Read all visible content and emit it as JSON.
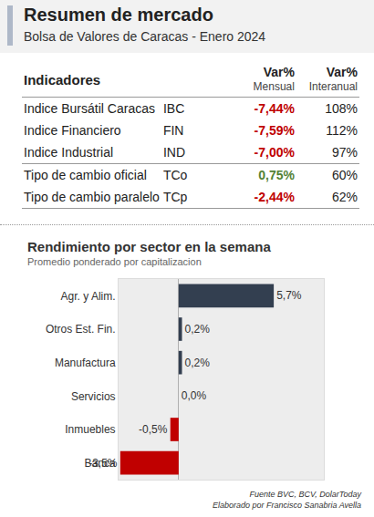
{
  "header": {
    "title": "Resumen de mercado",
    "subtitle": "Bolsa de Valores de Caracas - Enero 2024"
  },
  "table": {
    "headers": [
      "Indicadores",
      [
        "Var%",
        "Mensual"
      ],
      [
        "Var%",
        "Interanual"
      ]
    ],
    "row_groups": [
      [
        {
          "name": "Indice Bursátil Caracas",
          "code": "IBC",
          "monthly": "-7,44%",
          "yearly": "108%",
          "monthly_color": "#c00000"
        },
        {
          "name": "Indice Financiero",
          "code": "FIN",
          "monthly": "-7,59%",
          "yearly": "112%",
          "monthly_color": "#c00000"
        },
        {
          "name": "Indice Industrial",
          "code": "IND",
          "monthly": "-7,00%",
          "yearly": "97%",
          "monthly_color": "#c00000"
        }
      ],
      [
        {
          "name": "Tipo de cambio oficial",
          "code": "TCo",
          "monthly": "0,75%",
          "yearly": "60%",
          "monthly_color": "#548235"
        },
        {
          "name": "Tipo de cambio paralelo",
          "code": "TCp",
          "monthly": "-2,44%",
          "yearly": "62%",
          "monthly_color": "#c00000"
        }
      ]
    ]
  },
  "chart_data": {
    "type": "bar",
    "orientation": "horizontal",
    "title": "Rendimiento por sector en la semana",
    "subtitle": "Promedio ponderado por capitalizacion",
    "categories": [
      "Agr. y Alim.",
      "Otros Est. Fin.",
      "Manufactura",
      "Servicios",
      "Inmuebles",
      "Banca"
    ],
    "values": [
      5.7,
      0.2,
      0.2,
      0.0,
      -0.5,
      -3.5
    ],
    "value_labels": [
      "5,7%",
      "0,2%",
      "0,2%",
      "0,0%",
      "-0,5%",
      "-3,5%"
    ],
    "colors": [
      "#333f50",
      "#333f50",
      "#333f50",
      "#333f50",
      "#c00000",
      "#c00000"
    ],
    "data_labels": true,
    "xlim": [
      -3.6,
      8.7
    ],
    "xticks": [],
    "grid": false,
    "tick_labels": "y"
  },
  "footer": [
    "Fuente BVC, BCV, DolarToday",
    "Elaborado por Francisco Sanabria Avella"
  ]
}
